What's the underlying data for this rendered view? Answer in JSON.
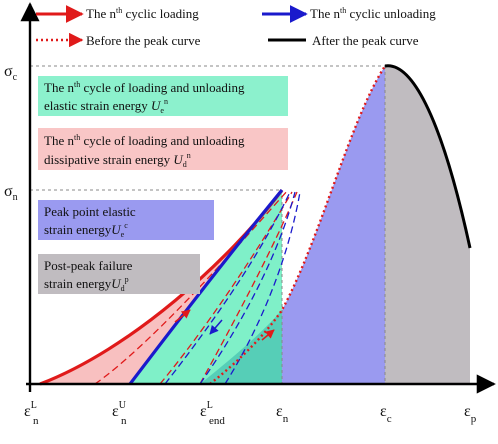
{
  "legend": {
    "nth_loading": {
      "main": "The n",
      "sup": "th",
      "rest": " cyclic loading",
      "color": "#e01a1a"
    },
    "nth_unloading": {
      "main": "The n",
      "sup": "th",
      "rest": " cyclic unloading",
      "color": "#1a1acc"
    },
    "before_peak": {
      "text": "Before the peak curve",
      "color": "#e01a1a"
    },
    "after_peak": {
      "text": "After the peak curve",
      "color": "#000000"
    }
  },
  "regions": {
    "elastic_nth": {
      "line1": "The n",
      "sup1": "th",
      "line1_rest": " cycle of loading and unloading",
      "line2": "elastic strain energy ",
      "sym": "U",
      "sub": "e",
      "sup": "n",
      "color": "#7ff0c8"
    },
    "dissipative_nth": {
      "line1": "The n",
      "sup1": "th",
      "line1_rest": " cycle of loading and unloading",
      "line2": "dissipative strain energy ",
      "sym": "U",
      "sub": "d",
      "sup": "n",
      "color": "#f8c0c0"
    },
    "peak_elastic": {
      "line1": "Peak point elastic",
      "line2": "strain energy",
      "sym": "U",
      "sub": "e",
      "sup": "c",
      "color": "#9a9af0"
    },
    "post_peak": {
      "line1": "Post-peak failure",
      "line2": "strain energy",
      "sym": "U",
      "sub": "d",
      "sup": "p",
      "color": "#c0bcc0"
    }
  },
  "y_axis": {
    "sigma_c": {
      "sym": "σ",
      "sub": "c"
    },
    "sigma_n": {
      "sym": "σ",
      "sub": "n"
    }
  },
  "x_axis": {
    "eps_Ln": {
      "sym": "ε",
      "sup": "L",
      "sub": "n"
    },
    "eps_Un": {
      "sym": "ε",
      "sup": "U",
      "sub": "n"
    },
    "eps_Lend": {
      "sym": "ε",
      "sup": "L",
      "sub": "end"
    },
    "eps_n": {
      "sym": "ε",
      "sub": "n"
    },
    "eps_c": {
      "sym": "ε",
      "sub": "c"
    },
    "eps_p": {
      "sym": "ε",
      "sub": "p"
    }
  }
}
